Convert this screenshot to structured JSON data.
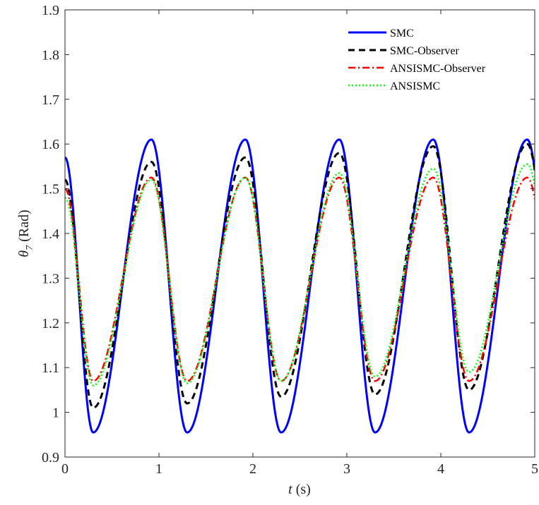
{
  "chart_data": {
    "type": "line",
    "title": "",
    "xlabel": {
      "var": "t",
      "unit": " (s)"
    },
    "ylabel": {
      "var": "θ",
      "sub": "7",
      "unit": " (Rad)"
    },
    "xlim": [
      0,
      5
    ],
    "ylim": [
      0.9,
      1.9
    ],
    "xticks": [
      "0",
      "1",
      "2",
      "3",
      "4",
      "5"
    ],
    "yticks": [
      "0.9",
      "1",
      "1.1",
      "1.2",
      "1.3",
      "1.4",
      "1.5",
      "1.6",
      "1.7",
      "1.8",
      "1.9"
    ],
    "grid": false,
    "legend_position": "top-right",
    "series": [
      {
        "name": "SMC",
        "color": "#0000FF",
        "style": "solid",
        "start": 1.57,
        "min": 0.955,
        "max": 1.61
      },
      {
        "name": "SMC-Observer",
        "color": "#000000",
        "style": "dashed",
        "start": 1.52,
        "min": [
          1.01,
          1.02,
          1.035,
          1.04,
          1.05
        ],
        "max": [
          1.56,
          1.57,
          1.58,
          1.595,
          1.6
        ]
      },
      {
        "name": "ANSISMC-Observer",
        "color": "#FF0000",
        "style": "dashdot",
        "start": 1.5,
        "min": 1.07,
        "max": 1.525
      },
      {
        "name": "ANSISMC",
        "color": "#00FF00",
        "style": "dotted",
        "start": 1.48,
        "min": [
          1.06,
          1.065,
          1.07,
          1.08,
          1.09
        ],
        "max": [
          1.52,
          1.525,
          1.535,
          1.545,
          1.555
        ]
      }
    ]
  }
}
